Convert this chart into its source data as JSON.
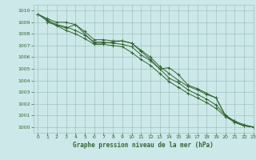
{
  "xlabel": "Graphe pression niveau de la mer (hPa)",
  "xlim": [
    -0.5,
    23
  ],
  "ylim": [
    999.5,
    1010.5
  ],
  "yticks": [
    1000,
    1001,
    1002,
    1003,
    1004,
    1005,
    1006,
    1007,
    1008,
    1009,
    1010
  ],
  "xticks": [
    0,
    1,
    2,
    3,
    4,
    5,
    6,
    7,
    8,
    9,
    10,
    11,
    12,
    13,
    14,
    15,
    16,
    17,
    18,
    19,
    20,
    21,
    22,
    23
  ],
  "background_color": "#cce8e8",
  "grid_color": "#99bbbb",
  "line_color": "#336633",
  "line1": [
    1009.7,
    1009.3,
    1009.0,
    1009.0,
    1008.8,
    1008.2,
    1007.5,
    1007.5,
    1007.4,
    1007.4,
    1007.2,
    1006.6,
    1006.0,
    1005.2,
    1004.6,
    1004.0,
    1003.5,
    1003.2,
    1002.8,
    1002.5,
    1001.0,
    1000.5,
    1000.1,
    1000.0
  ],
  "line2": [
    1009.7,
    1009.2,
    1008.8,
    1008.6,
    1008.3,
    1007.9,
    1007.3,
    1007.3,
    1007.2,
    1007.1,
    1006.9,
    1006.2,
    1005.7,
    1005.0,
    1004.2,
    1003.8,
    1003.2,
    1002.8,
    1002.4,
    1001.9,
    1001.0,
    1000.4,
    1000.1,
    1000.0
  ],
  "line3_x": [
    0,
    1,
    2,
    3,
    4,
    5,
    6,
    7,
    8,
    9,
    10,
    11,
    12,
    13,
    14,
    15,
    16,
    17,
    18,
    19,
    20,
    21,
    22,
    23
  ],
  "line3": [
    1009.7,
    1009.1,
    1008.7,
    1008.3,
    1008.0,
    1007.6,
    1007.1,
    1007.1,
    1007.0,
    1006.9,
    1006.4,
    1005.8,
    1005.3,
    1004.6,
    1003.9,
    1003.4,
    1002.9,
    1002.5,
    1002.1,
    1001.6,
    1000.9,
    1000.4,
    1000.1,
    1000.0
  ],
  "line4_x": [
    1,
    3,
    4,
    6,
    7,
    8,
    9,
    10,
    11,
    12,
    13,
    14,
    15,
    16,
    17,
    18,
    19,
    20,
    21,
    22,
    23
  ],
  "line4": [
    1009.0,
    1008.5,
    1008.8,
    1007.2,
    1007.2,
    1007.3,
    1007.4,
    1007.2,
    1006.5,
    1005.8,
    1005.0,
    1005.1,
    1004.5,
    1003.6,
    1003.3,
    1002.9,
    1002.5,
    1001.0,
    1000.5,
    1000.2,
    1000.0
  ]
}
